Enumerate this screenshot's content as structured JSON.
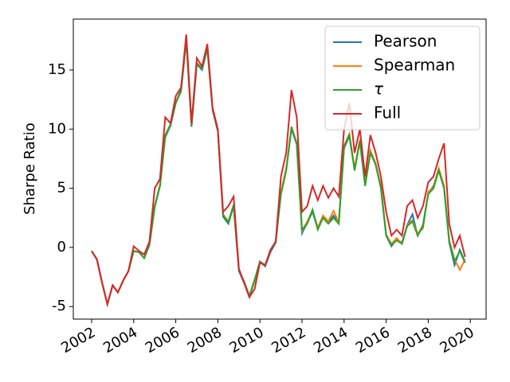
{
  "chart_data": {
    "type": "line",
    "y_label": "Sharpe Ratio",
    "x": [
      2002,
      2002.25,
      2002.5,
      2002.75,
      2003,
      2003.25,
      2003.5,
      2003.75,
      2004,
      2004.25,
      2004.5,
      2004.75,
      2005,
      2005.25,
      2005.5,
      2005.75,
      2006,
      2006.25,
      2006.5,
      2006.75,
      2007,
      2007.25,
      2007.5,
      2007.75,
      2008,
      2008.25,
      2008.5,
      2008.75,
      2009,
      2009.25,
      2009.5,
      2009.75,
      2010,
      2010.25,
      2010.5,
      2010.75,
      2011,
      2011.25,
      2011.5,
      2011.75,
      2012,
      2012.25,
      2012.5,
      2012.75,
      2013,
      2013.25,
      2013.5,
      2013.75,
      2014,
      2014.25,
      2014.5,
      2014.75,
      2015,
      2015.25,
      2015.5,
      2015.75,
      2016,
      2016.25,
      2016.5,
      2016.75,
      2017,
      2017.25,
      2017.5,
      2017.75,
      2018,
      2018.25,
      2018.5,
      2018.75,
      2019,
      2019.25,
      2019.5,
      2019.75
    ],
    "series": [
      {
        "name": "Pearson",
        "color": "#1f77b4",
        "values": [
          -0.3,
          -1.0,
          -3.0,
          -4.8,
          -3.2,
          -3.8,
          -2.8,
          -2.0,
          -0.3,
          -0.4,
          -0.9,
          0.2,
          3.4,
          5.2,
          9.3,
          10.3,
          12.2,
          13.2,
          17.5,
          10.2,
          15.5,
          15.0,
          16.8,
          11.6,
          9.8,
          2.6,
          2.0,
          3.5,
          -2.0,
          -3.0,
          -4.2,
          -2.8,
          -1.2,
          -1.6,
          -0.4,
          0.4,
          4.6,
          6.6,
          10.0,
          8.7,
          1.2,
          2.1,
          3.0,
          1.6,
          2.6,
          2.1,
          2.7,
          2.2,
          8.4,
          9.4,
          6.6,
          9.0,
          5.3,
          8.1,
          7.0,
          5.1,
          1.0,
          0.1,
          0.7,
          0.4,
          1.9,
          2.8,
          1.0,
          1.9,
          4.6,
          5.2,
          6.6,
          5.1,
          0.4,
          -1.5,
          -0.2,
          -1.2
        ]
      },
      {
        "name": "Spearman",
        "color": "#ff7f0e",
        "values": [
          -0.3,
          -1.0,
          -3.0,
          -4.8,
          -3.2,
          -3.8,
          -2.8,
          -2.0,
          -0.3,
          -0.4,
          -0.9,
          0.3,
          3.5,
          5.3,
          9.4,
          10.4,
          12.3,
          13.3,
          17.6,
          10.3,
          15.6,
          15.1,
          16.9,
          11.7,
          9.9,
          2.8,
          2.2,
          3.6,
          -1.9,
          -2.9,
          -4.1,
          -2.8,
          -1.2,
          -1.5,
          -0.3,
          0.5,
          4.7,
          6.7,
          10.1,
          8.8,
          1.4,
          2.2,
          3.1,
          1.7,
          2.7,
          2.2,
          3.1,
          2.1,
          8.6,
          9.6,
          6.7,
          9.1,
          5.4,
          8.2,
          7.1,
          5.2,
          1.1,
          0.3,
          0.8,
          0.3,
          1.9,
          2.3,
          1.2,
          1.6,
          4.7,
          5.1,
          6.7,
          5.2,
          0.6,
          -1.0,
          -1.9,
          -1.0
        ]
      },
      {
        "name": "τ",
        "color": "#2ca02c",
        "values": [
          -0.3,
          -1.0,
          -3.0,
          -4.8,
          -3.2,
          -3.8,
          -2.8,
          -2.0,
          -0.3,
          -0.4,
          -0.9,
          0.3,
          3.5,
          5.2,
          9.5,
          10.4,
          12.2,
          13.3,
          17.6,
          10.3,
          15.6,
          15.1,
          16.9,
          11.7,
          9.9,
          2.7,
          2.1,
          3.6,
          -1.9,
          -2.9,
          -4.1,
          -2.7,
          -1.2,
          -1.5,
          -0.3,
          0.5,
          4.5,
          6.5,
          10.2,
          8.8,
          1.5,
          2.0,
          3.2,
          1.5,
          2.5,
          2.0,
          2.5,
          2.0,
          8.5,
          9.5,
          6.5,
          9.0,
          5.2,
          8.0,
          7.0,
          5.0,
          1.0,
          0.2,
          0.6,
          0.3,
          1.8,
          2.2,
          1.0,
          1.8,
          4.5,
          5.0,
          6.5,
          5.0,
          0.5,
          -1.2,
          -0.3,
          -1.3
        ]
      },
      {
        "name": "Full",
        "color": "#d62728",
        "values": [
          -0.3,
          -1.0,
          -3.0,
          -4.8,
          -3.2,
          -3.8,
          -2.8,
          -2.0,
          0.1,
          -0.3,
          -0.6,
          0.5,
          5.0,
          5.8,
          11.0,
          10.5,
          12.8,
          13.5,
          18.0,
          10.5,
          16.0,
          15.3,
          17.2,
          11.8,
          10.0,
          3.0,
          3.5,
          4.3,
          -1.8,
          -3.0,
          -4.2,
          -3.5,
          -1.3,
          -1.5,
          -0.2,
          0.5,
          6.0,
          8.0,
          13.3,
          11.0,
          3.0,
          3.5,
          5.2,
          4.0,
          5.2,
          4.2,
          5.0,
          4.3,
          10.0,
          12.2,
          8.0,
          10.0,
          6.0,
          9.5,
          8.0,
          6.0,
          3.0,
          1.0,
          1.5,
          1.0,
          3.5,
          4.0,
          2.5,
          3.5,
          5.5,
          6.0,
          7.5,
          8.8,
          2.0,
          0.0,
          1.0,
          -0.8
        ]
      }
    ],
    "xlim": [
      2001.13,
      2020.75
    ],
    "xticks": [
      2002,
      2004,
      2006,
      2008,
      2010,
      2012,
      2014,
      2016,
      2018,
      2020
    ],
    "ylim": [
      -6.06,
      19.3
    ],
    "yticks": [
      -5,
      0,
      5,
      10,
      15
    ],
    "legend": "upper right",
    "grid": false
  }
}
